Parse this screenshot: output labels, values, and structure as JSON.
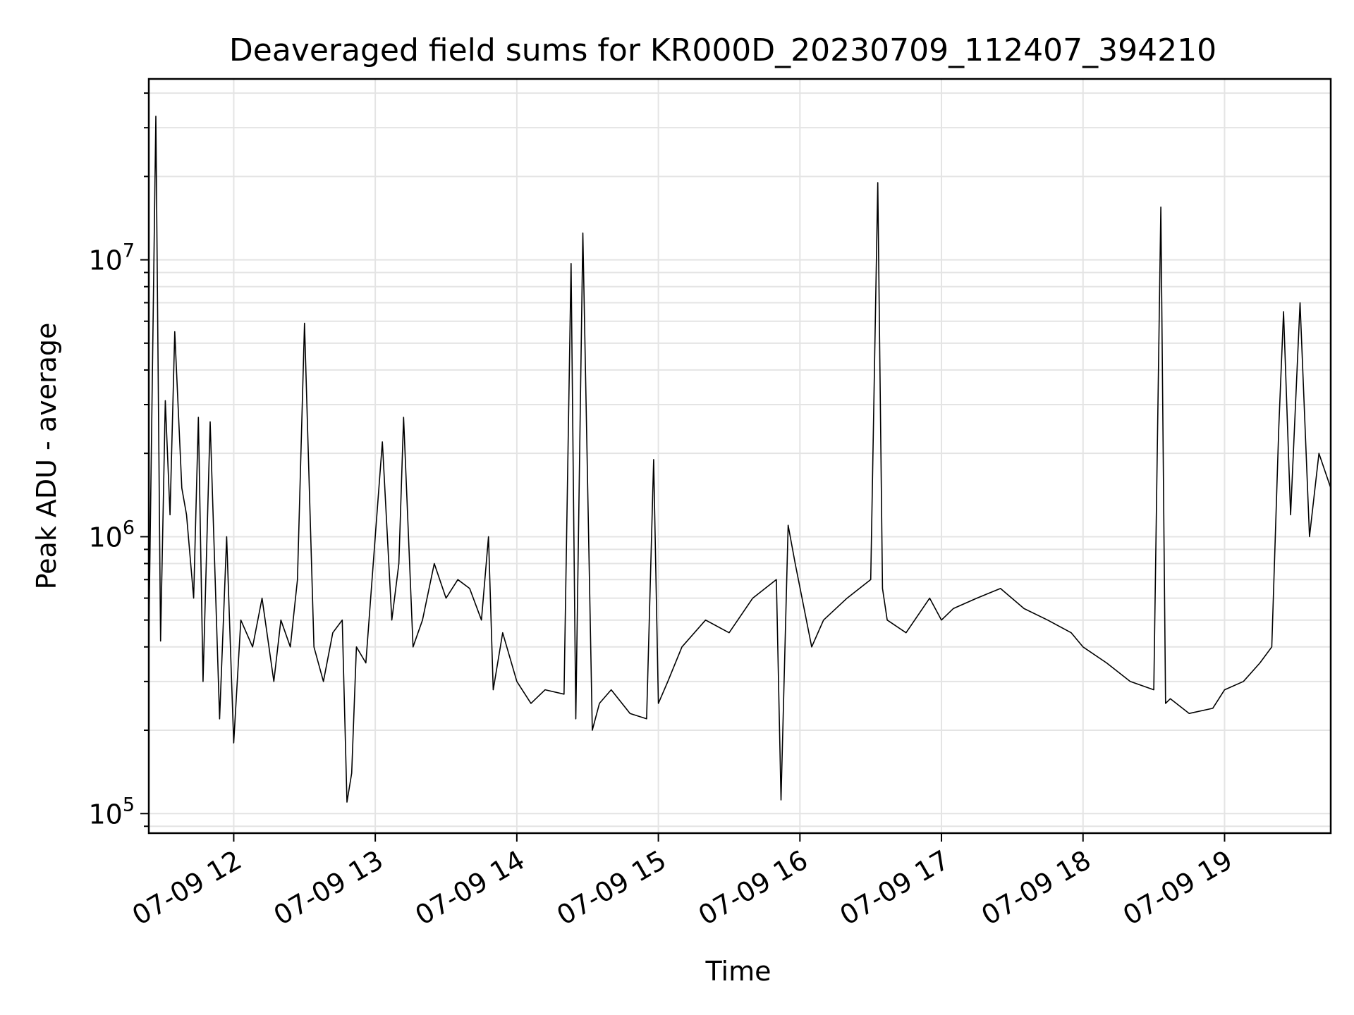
{
  "chart_data": {
    "type": "line",
    "title": "Deaveraged field sums for KR000D_20230709_112407_394210",
    "xlabel": "Time",
    "ylabel": "Peak ADU - average",
    "x_tick_labels": [
      "07-09 12",
      "07-09 13",
      "07-09 14",
      "07-09 15",
      "07-09 16",
      "07-09 17",
      "07-09 18",
      "07-09 19"
    ],
    "x_tick_dates": [
      "2023-07-09 12:00",
      "2023-07-09 13:00",
      "2023-07-09 14:00",
      "2023-07-09 15:00",
      "2023-07-09 16:00",
      "2023-07-09 17:00",
      "2023-07-09 18:00",
      "2023-07-09 19:00"
    ],
    "xlim": [
      "2023-07-09 11:24",
      "2023-07-09 19:45"
    ],
    "y_scale": "log",
    "y_tick_labels": [
      {
        "base": "10",
        "exp": "5",
        "value": 100000
      },
      {
        "base": "10",
        "exp": "6",
        "value": 1000000
      },
      {
        "base": "10",
        "exp": "7",
        "value": 10000000
      }
    ],
    "ylim": [
      85000,
      45000000
    ],
    "grid": true,
    "line_color": "#000000",
    "series": [
      {
        "x": [
          "11:24",
          "11:27",
          "11:29",
          "11:31",
          "11:33",
          "11:35",
          "11:38",
          "11:40",
          "11:43",
          "11:45",
          "11:47",
          "11:50",
          "11:54",
          "11:57",
          "12:00",
          "12:03",
          "12:08",
          "12:12",
          "12:17",
          "12:20",
          "12:24",
          "12:27",
          "12:30",
          "12:34",
          "12:38",
          "12:42",
          "12:46",
          "12:48",
          "12:50",
          "12:52",
          "12:56",
          "13:00",
          "13:03",
          "13:07",
          "13:10",
          "13:12",
          "13:16",
          "13:20",
          "13:25",
          "13:30",
          "13:35",
          "13:40",
          "13:45",
          "13:48",
          "13:50",
          "13:54",
          "14:00",
          "14:06",
          "14:12",
          "14:20",
          "14:23",
          "14:25",
          "14:28",
          "14:32",
          "14:35",
          "14:40",
          "14:48",
          "14:55",
          "14:58",
          "15:00",
          "15:04",
          "15:10",
          "15:20",
          "15:30",
          "15:40",
          "15:50",
          "15:52",
          "15:55",
          "15:58",
          "16:05",
          "16:10",
          "16:20",
          "16:30",
          "16:33",
          "16:35",
          "16:37",
          "16:45",
          "16:55",
          "17:00",
          "17:05",
          "17:15",
          "17:25",
          "17:35",
          "17:45",
          "17:55",
          "18:00",
          "18:10",
          "18:20",
          "18:30",
          "18:33",
          "18:35",
          "18:37",
          "18:45",
          "18:55",
          "19:00",
          "19:08",
          "19:15",
          "19:20",
          "19:23",
          "19:25",
          "19:28",
          "19:32",
          "19:36",
          "19:40",
          "19:45"
        ],
        "y": [
          420000,
          33000000,
          420000,
          3100000,
          1200000,
          5500000,
          1500000,
          1200000,
          600000,
          2700000,
          300000,
          2600000,
          220000,
          1000000,
          180000,
          500000,
          400000,
          600000,
          300000,
          500000,
          400000,
          700000,
          5900000,
          400000,
          300000,
          450000,
          500000,
          110000,
          140000,
          400000,
          350000,
          1000000,
          2200000,
          500000,
          800000,
          2700000,
          400000,
          500000,
          800000,
          600000,
          700000,
          650000,
          500000,
          1000000,
          280000,
          450000,
          300000,
          250000,
          280000,
          270000,
          9700000,
          220000,
          12500000,
          200000,
          250000,
          280000,
          230000,
          220000,
          1900000,
          250000,
          300000,
          400000,
          500000,
          450000,
          600000,
          700000,
          112000,
          1100000,
          800000,
          400000,
          500000,
          600000,
          700000,
          19000000,
          650000,
          500000,
          450000,
          600000,
          500000,
          550000,
          600000,
          650000,
          550000,
          500000,
          450000,
          400000,
          350000,
          300000,
          280000,
          15500000,
          250000,
          260000,
          230000,
          240000,
          280000,
          300000,
          350000,
          400000,
          2500000,
          6500000,
          1200000,
          7000000,
          1000000,
          2000000,
          1500000
        ]
      }
    ]
  }
}
